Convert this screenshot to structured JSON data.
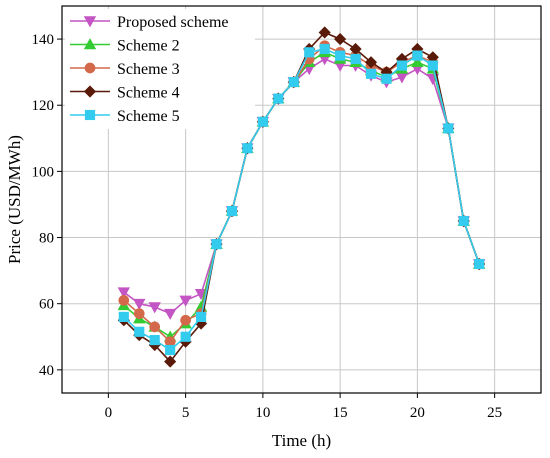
{
  "chart_data": {
    "type": "line",
    "xlabel": "Time  (h)",
    "ylabel": "Price  (USD/MWh)",
    "xlim": [
      -3,
      28
    ],
    "ylim": [
      33,
      150
    ],
    "xticks": [
      0,
      5,
      10,
      15,
      20,
      25
    ],
    "yticks": [
      40,
      60,
      80,
      100,
      120,
      140
    ],
    "grid": true,
    "legend": "top-left",
    "series": [
      {
        "name": "Proposed scheme",
        "color": "#c455c4",
        "marker": "triangle-down",
        "x": [
          1,
          2,
          3,
          4,
          5,
          6,
          7,
          8,
          9,
          10,
          11,
          12,
          13,
          14,
          15,
          16,
          17,
          18,
          19,
          20,
          21,
          22,
          23,
          24
        ],
        "values": [
          63.5,
          60,
          59,
          57,
          61,
          63,
          78,
          88,
          107,
          115,
          122,
          127,
          131,
          134,
          132,
          132,
          129,
          127,
          128.5,
          131,
          128,
          113,
          85,
          72
        ]
      },
      {
        "name": "Scheme 2",
        "color": "#33cc33",
        "marker": "triangle-up",
        "x": [
          1,
          2,
          3,
          4,
          5,
          6,
          7,
          8,
          9,
          10,
          11,
          12,
          13,
          14,
          15,
          16,
          17,
          18,
          19,
          20,
          21,
          22,
          23,
          24
        ],
        "values": [
          59.5,
          55.5,
          53,
          50,
          54,
          59,
          78,
          88,
          107,
          115,
          122,
          127,
          133,
          136,
          134,
          133,
          130.5,
          128.5,
          131,
          133,
          131,
          113,
          85,
          72
        ]
      },
      {
        "name": "Scheme 3",
        "color": "#d4684a",
        "marker": "circle",
        "x": [
          1,
          2,
          3,
          4,
          5,
          6,
          7,
          8,
          9,
          10,
          11,
          12,
          13,
          14,
          15,
          16,
          17,
          18,
          19,
          20,
          21,
          22,
          23,
          24
        ],
        "values": [
          61,
          57,
          53,
          48.5,
          55,
          57,
          78,
          88,
          107,
          115,
          122,
          127,
          134,
          138,
          136,
          135,
          132,
          130,
          133,
          135,
          133,
          113,
          85,
          72
        ]
      },
      {
        "name": "Scheme 4",
        "color": "#5a1a0a",
        "marker": "diamond",
        "x": [
          1,
          2,
          3,
          4,
          5,
          6,
          7,
          8,
          9,
          10,
          11,
          12,
          13,
          14,
          15,
          16,
          17,
          18,
          19,
          20,
          21,
          22,
          23,
          24
        ],
        "values": [
          55,
          50.5,
          47.5,
          42.5,
          48.5,
          54,
          78,
          88,
          107,
          115,
          122,
          127,
          137,
          142,
          140,
          137,
          133,
          130,
          134,
          137,
          134.5,
          113,
          85,
          72
        ]
      },
      {
        "name": "Scheme 5",
        "color": "#33ccee",
        "marker": "square",
        "x": [
          1,
          2,
          3,
          4,
          5,
          6,
          7,
          8,
          9,
          10,
          11,
          12,
          13,
          14,
          15,
          16,
          17,
          18,
          19,
          20,
          21,
          22,
          23,
          24
        ],
        "values": [
          56,
          51.5,
          49,
          46,
          50,
          56,
          78,
          88,
          107,
          115,
          122,
          127,
          136,
          137,
          135,
          134,
          129.5,
          128,
          132,
          135,
          132,
          113,
          85,
          72
        ]
      }
    ]
  }
}
